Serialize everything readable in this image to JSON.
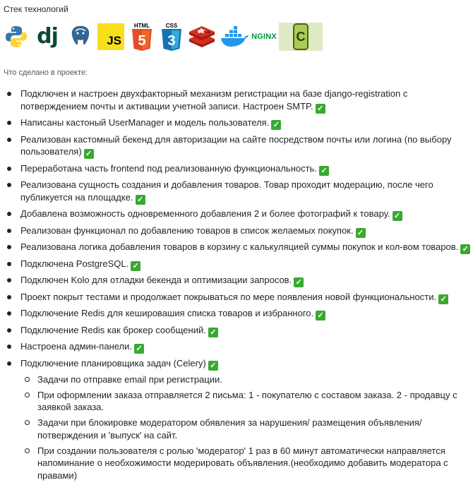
{
  "header": {
    "stack_title": "Стек технологий",
    "section_title": "Что сделано в проекте:"
  },
  "tech_icons": [
    {
      "name": "python-icon"
    },
    {
      "name": "django-icon",
      "label": "dj"
    },
    {
      "name": "postgresql-icon"
    },
    {
      "name": "javascript-icon",
      "label": "JS"
    },
    {
      "name": "html5-icon",
      "label": "HTML",
      "digit": "5"
    },
    {
      "name": "css3-icon",
      "label": "CSS",
      "digit": "3"
    },
    {
      "name": "redis-icon"
    },
    {
      "name": "docker-icon"
    },
    {
      "name": "nginx-icon",
      "label": "NGINX"
    },
    {
      "name": "celery-icon",
      "label": "C"
    }
  ],
  "check_mark": "✓",
  "colors": {
    "check_green": "#3aa831",
    "python_blue": "#3776ab",
    "python_yellow": "#ffd43b",
    "django_green": "#0c4b33",
    "js_yellow": "#f7df1e",
    "html_orange": "#e44d26",
    "css_blue": "#1572b6",
    "redis_red": "#d82c20",
    "docker_blue": "#2496ed",
    "nginx_green": "#009639",
    "celery_green": "#a9cc54"
  },
  "items": [
    {
      "text": "Подключен и настроен двухфакторный механизм регистрации на базе django-registration с потверждением почты и активации учетной записи. Настроен SMTP.",
      "check": true
    },
    {
      "text": "Написаны кастоный UserManager и модель пользователя.",
      "check": true
    },
    {
      "text": "Реализован кастомный бекенд для авторизации на сайте посредством почты или логина (по выбору пользователя)",
      "check": true
    },
    {
      "text": "Переработана часть frontend под реализованную функциональность.",
      "check": true
    },
    {
      "text": "Реализована сущность создания и добавления товаров. Товар проходит модерацию, после чего публикуется на площадке.",
      "check": true
    },
    {
      "text": "Добавлена возможность одновременного добавления 2 и более фотографий к товару.",
      "check": true
    },
    {
      "text": "Реализован функционал по добавлению товаров в список желаемых покупок.",
      "check": true
    },
    {
      "text": "Реализована логика добавления товаров в корзину с калькуляцией суммы покупок и кол-вом товаров.",
      "check": true
    },
    {
      "text": "Подключена PostgreSQL.",
      "check": true
    },
    {
      "text": "Подключен Kolo для отладки бекенда и оптимизации запросов.",
      "check": true
    },
    {
      "text": "Проект покрыт тестами и продолжает покрываться по мере появления новой функциональности.",
      "check": true
    },
    {
      "text": "Подключение Redis для кешировашия списка товаров и избранного.",
      "check": true
    },
    {
      "text": "Подключение Redis как брокер сообщений.",
      "check": true
    },
    {
      "text": "Настроена админ-панели.",
      "check": true
    },
    {
      "text": "Подключение планировщика задач (Celery)",
      "check": true,
      "sub": [
        "Задачи по отправке email при регистрации.",
        "При оформлении заказа отправляется 2 письма: 1 - покупателю с составом заказа. 2 - продавцу с заявкой заказа.",
        "Задачи при блокировке модератором обявления за нарушения/ размещения объявления/ потверждения и 'выпуск' на сайт.",
        "При создании пользователя с ролью 'модератор' 1 раз в 60 минут автоматически направляется напоминание о необхожимости модерировать объявления.(необходимо добавить модератора с правами)"
      ]
    }
  ]
}
